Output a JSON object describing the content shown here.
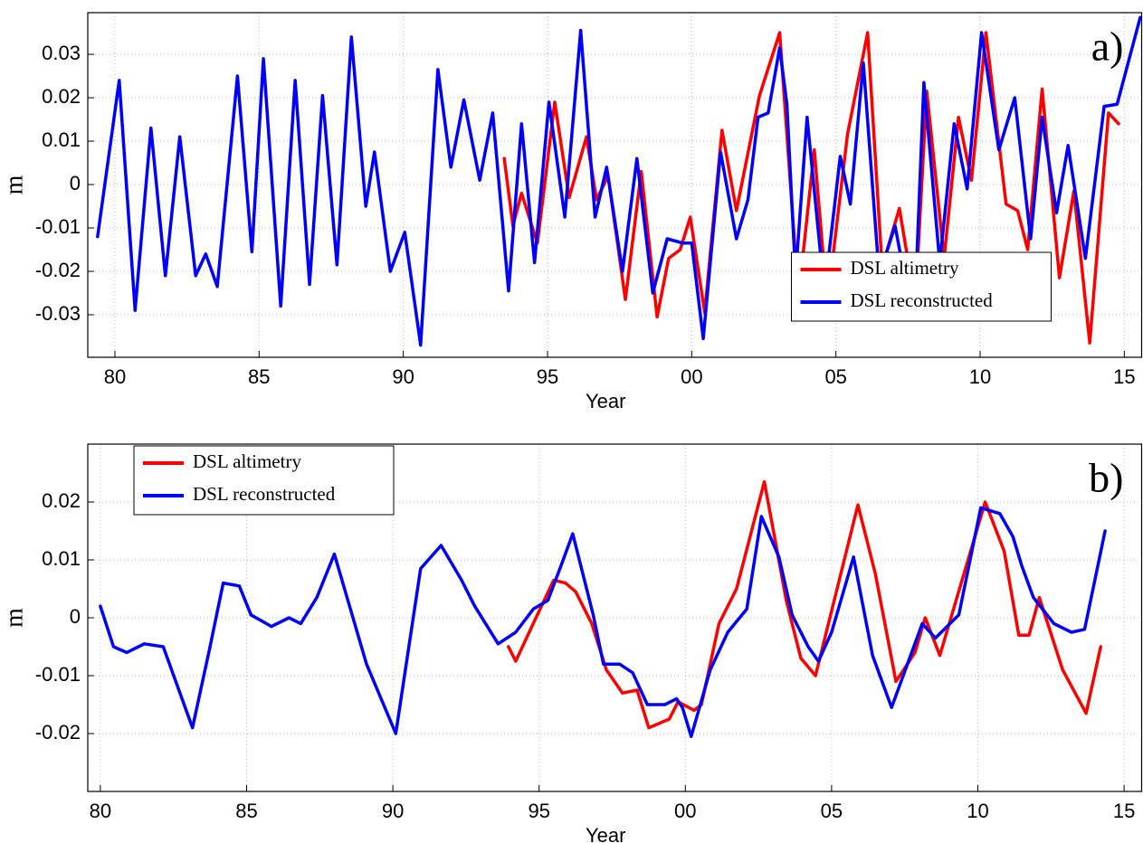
{
  "chart_data": [
    {
      "type": "line",
      "annotation": "a)",
      "xlabel": "Year",
      "ylabel": "m",
      "xlim": [
        1979.06,
        2015.6
      ],
      "ylim": [
        -0.0398,
        0.0396
      ],
      "xticks": [
        {
          "value": 1980,
          "label": "80"
        },
        {
          "value": 1985,
          "label": "85"
        },
        {
          "value": 1990,
          "label": "90"
        },
        {
          "value": 1995,
          "label": "95"
        },
        {
          "value": 2000,
          "label": "00"
        },
        {
          "value": 2005,
          "label": "05"
        },
        {
          "value": 2010,
          "label": "10"
        },
        {
          "value": 2015,
          "label": "15"
        }
      ],
      "yticks": [
        -0.03,
        -0.02,
        -0.01,
        0,
        0.01,
        0.02,
        0.03
      ],
      "grid": true,
      "legend": "lower right",
      "series": [
        {
          "name": "DSL altimetry",
          "color": "#ff0000",
          "x": [
            1993.5,
            1993.8,
            1994.1,
            1994.65,
            1995.25,
            1995.75,
            1996.35,
            1996.7,
            1997.1,
            1997.7,
            1998.25,
            1998.8,
            1999.2,
            1999.6,
            1999.95,
            2000.45,
            2001.05,
            2001.55,
            2002.35,
            2003.05,
            2003.7,
            2004.25,
            2004.7,
            2005.4,
            2006.1,
            2006.6,
            2007.2,
            2007.75,
            2008.15,
            2008.75,
            2009.25,
            2009.7,
            2010.2,
            2010.9,
            2011.3,
            2011.65,
            2012.15,
            2012.75,
            2013.25,
            2013.8,
            2014.45,
            2014.8
          ],
          "values": [
            0.006,
            -0.0095,
            -0.002,
            -0.0135,
            0.019,
            -0.003,
            0.011,
            -0.0035,
            0.002,
            -0.0265,
            0.003,
            -0.0305,
            -0.017,
            -0.015,
            -0.0075,
            -0.0295,
            0.0125,
            -0.006,
            0.0205,
            0.035,
            -0.026,
            0.008,
            -0.0275,
            0.0115,
            0.035,
            -0.019,
            -0.0055,
            -0.0275,
            0.0215,
            -0.017,
            0.0155,
            0.001,
            0.035,
            -0.0045,
            -0.006,
            -0.015,
            0.022,
            -0.0215,
            -0.0015,
            -0.0365,
            0.0165,
            0.014
          ]
        },
        {
          "name": "DSL reconstructed",
          "color": "#0000ff",
          "x": [
            1979.4,
            1980.15,
            1980.7,
            1981.25,
            1981.75,
            1982.25,
            1982.8,
            1983.15,
            1983.55,
            1984.25,
            1984.75,
            1985.15,
            1985.75,
            1986.25,
            1986.75,
            1987.2,
            1987.7,
            1988.2,
            1988.7,
            1989.0,
            1989.55,
            1990.05,
            1990.6,
            1991.2,
            1991.65,
            1992.1,
            1992.65,
            1993.1,
            1993.65,
            1994.1,
            1994.55,
            1995.05,
            1995.6,
            1996.15,
            1996.65,
            1997.05,
            1997.6,
            1998.1,
            1998.65,
            1999.15,
            1999.7,
            2000.0,
            2000.4,
            2001.0,
            2001.55,
            2001.95,
            2002.3,
            2002.65,
            2003.05,
            2003.3,
            2003.6,
            2004.0,
            2004.6,
            2005.15,
            2005.5,
            2005.95,
            2006.5,
            2007.05,
            2007.45,
            2007.75,
            2008.05,
            2008.6,
            2009.1,
            2009.55,
            2010.05,
            2010.65,
            2011.2,
            2011.75,
            2012.15,
            2012.65,
            2013.05,
            2013.65,
            2014.3,
            2014.75,
            2015.55
          ],
          "values": [
            -0.012,
            0.024,
            -0.029,
            0.013,
            -0.021,
            0.011,
            -0.021,
            -0.016,
            -0.0235,
            0.025,
            -0.0155,
            0.029,
            -0.028,
            0.024,
            -0.023,
            0.0205,
            -0.0185,
            0.034,
            -0.005,
            0.0075,
            -0.02,
            -0.011,
            -0.037,
            0.0265,
            0.004,
            0.0195,
            0.001,
            0.0165,
            -0.0245,
            0.014,
            -0.018,
            0.019,
            -0.0075,
            0.0355,
            -0.0075,
            0.004,
            -0.02,
            0.006,
            -0.025,
            -0.0125,
            -0.0135,
            -0.0135,
            -0.0355,
            0.0075,
            -0.0125,
            -0.0035,
            0.0155,
            0.0165,
            0.0315,
            0.0185,
            -0.021,
            0.0155,
            -0.025,
            0.0065,
            -0.0045,
            0.028,
            -0.021,
            -0.0095,
            -0.0235,
            -0.026,
            0.0235,
            -0.018,
            0.014,
            -0.001,
            0.035,
            0.008,
            0.02,
            -0.0125,
            0.0155,
            -0.0065,
            0.009,
            -0.017,
            0.018,
            0.0185,
            0.0385
          ]
        }
      ]
    },
    {
      "type": "line",
      "annotation": "b)",
      "xlabel": "Year",
      "ylabel": "m",
      "xlim": [
        1979.57,
        2015.6
      ],
      "ylim": [
        -0.03,
        0.03
      ],
      "xticks": [
        {
          "value": 1980,
          "label": "80"
        },
        {
          "value": 1985,
          "label": "85"
        },
        {
          "value": 1990,
          "label": "90"
        },
        {
          "value": 1995,
          "label": "95"
        },
        {
          "value": 2000,
          "label": "00"
        },
        {
          "value": 2005,
          "label": "05"
        },
        {
          "value": 2010,
          "label": "10"
        },
        {
          "value": 2015,
          "label": "15"
        }
      ],
      "yticks": [
        -0.02,
        -0.01,
        0,
        0.01,
        0.02
      ],
      "grid": true,
      "legend": "upper left",
      "series": [
        {
          "name": "DSL altimetry",
          "color": "#ff0000",
          "x": [
            1993.95,
            1994.2,
            1994.8,
            1995.5,
            1995.9,
            1996.25,
            1996.8,
            1997.3,
            1997.85,
            1998.35,
            1998.75,
            1999.45,
            1999.75,
            2000.3,
            2000.55,
            2001.15,
            2001.75,
            2002.7,
            2003.45,
            2003.95,
            2004.45,
            2005.9,
            2006.5,
            2007.2,
            2007.85,
            2008.2,
            2008.7,
            2010.25,
            2010.9,
            2011.4,
            2011.75,
            2012.1,
            2012.9,
            2013.7,
            2014.2
          ],
          "values": [
            -0.005,
            -0.0075,
            -0.001,
            0.0065,
            0.006,
            0.0045,
            -0.001,
            -0.009,
            -0.013,
            -0.0125,
            -0.019,
            -0.0175,
            -0.0145,
            -0.016,
            -0.015,
            -0.001,
            0.005,
            0.0235,
            0.003,
            -0.007,
            -0.01,
            0.0195,
            0.0075,
            -0.011,
            -0.006,
            0,
            -0.0065,
            0.02,
            0.0115,
            -0.003,
            -0.003,
            0.0035,
            -0.009,
            -0.0165,
            -0.005
          ]
        },
        {
          "name": "DSL reconstructed",
          "color": "#0000ff",
          "x": [
            1980.0,
            1980.45,
            1980.9,
            1981.5,
            1982.15,
            1983.15,
            1983.75,
            1984.2,
            1984.75,
            1985.15,
            1985.85,
            1986.45,
            1986.85,
            1987.4,
            1988.0,
            1989.1,
            1990.1,
            1990.95,
            1991.65,
            1992.35,
            1992.8,
            1993.6,
            1994.2,
            1994.8,
            1995.3,
            1995.75,
            1996.15,
            1996.85,
            1997.2,
            1997.75,
            1998.2,
            1998.7,
            1999.3,
            1999.7,
            1999.9,
            2000.2,
            2000.85,
            2001.45,
            2002.1,
            2002.6,
            2003.2,
            2003.65,
            2004.2,
            2004.55,
            2005.0,
            2005.75,
            2006.4,
            2007.05,
            2008.1,
            2008.55,
            2009.35,
            2010.1,
            2010.75,
            2011.2,
            2011.5,
            2011.9,
            2012.6,
            2013.2,
            2013.65,
            2014.35
          ],
          "values": [
            0.002,
            -0.005,
            -0.006,
            -0.0045,
            -0.005,
            -0.019,
            -0.005,
            0.006,
            0.0055,
            0.0005,
            -0.0015,
            0,
            -0.001,
            0.0035,
            0.011,
            -0.008,
            -0.02,
            0.0085,
            0.0125,
            0.0065,
            0.002,
            -0.0045,
            -0.0025,
            0.0015,
            0.003,
            0.009,
            0.0145,
            0.0005,
            -0.008,
            -0.008,
            -0.0095,
            -0.015,
            -0.015,
            -0.014,
            -0.0155,
            -0.0205,
            -0.009,
            -0.0025,
            0.0015,
            0.0175,
            0.0105,
            0.0005,
            -0.005,
            -0.0075,
            -0.0025,
            0.0105,
            -0.0065,
            -0.0155,
            -0.001,
            -0.0035,
            0.0005,
            0.019,
            0.018,
            0.014,
            0.009,
            0.0035,
            -0.001,
            -0.0025,
            -0.002,
            0.015
          ]
        }
      ]
    }
  ]
}
